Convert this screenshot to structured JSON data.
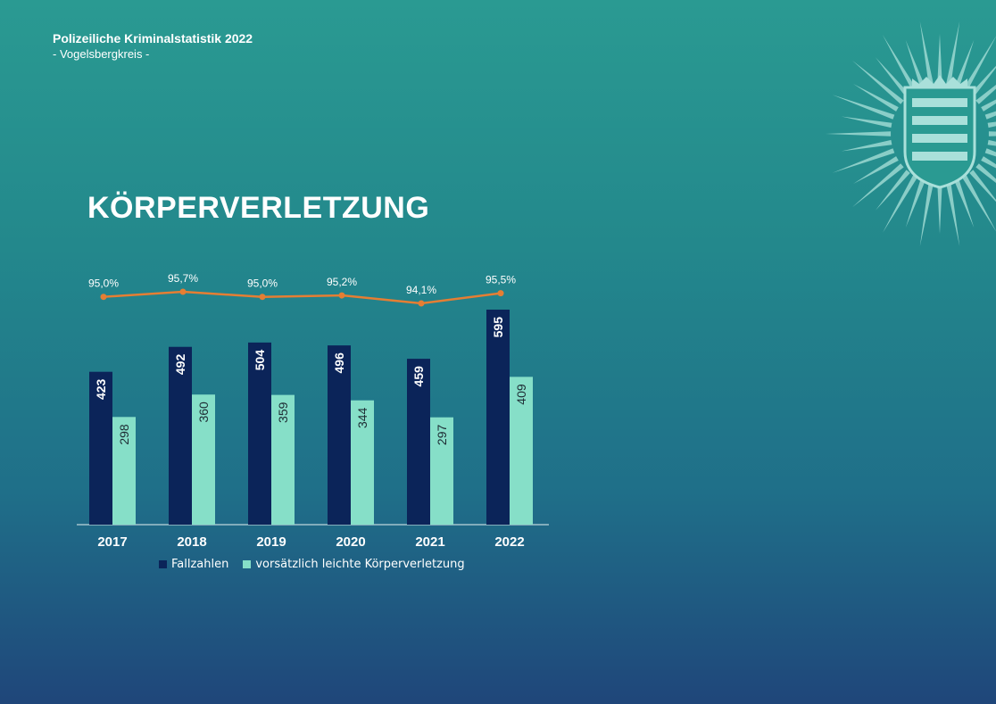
{
  "header": {
    "title": "Polizeiliche Kriminalstatistik 2022",
    "subtitle": "- Vogelsbergkreis -"
  },
  "emblem": {
    "icon": "hessen-police-star-emblem-icon"
  },
  "main": {
    "title": "KÖRPERVERLETZUNG"
  },
  "colors": {
    "fallzahlen": "#0b2459",
    "leicht": "#86dfc8",
    "line": "#e57e33",
    "axis": "#e6f0f0"
  },
  "chart_data": {
    "type": "bar",
    "categories": [
      "2017",
      "2018",
      "2019",
      "2020",
      "2021",
      "2022"
    ],
    "series": [
      {
        "name": "Fallzahlen",
        "values": [
          423,
          492,
          504,
          496,
          459,
          595
        ]
      },
      {
        "name": "vorsätzlich leichte Körperverletzung",
        "values": [
          298,
          360,
          359,
          344,
          297,
          409
        ]
      }
    ],
    "line_series": {
      "values": [
        95.0,
        95.7,
        95.0,
        95.2,
        94.1,
        95.5
      ],
      "labels": [
        "95,0%",
        "95,7%",
        "95,0%",
        "95,2%",
        "94,1%",
        "95,5%"
      ]
    },
    "ylim": [
      0,
      600
    ],
    "legend_position": "bottom",
    "grid": false
  }
}
